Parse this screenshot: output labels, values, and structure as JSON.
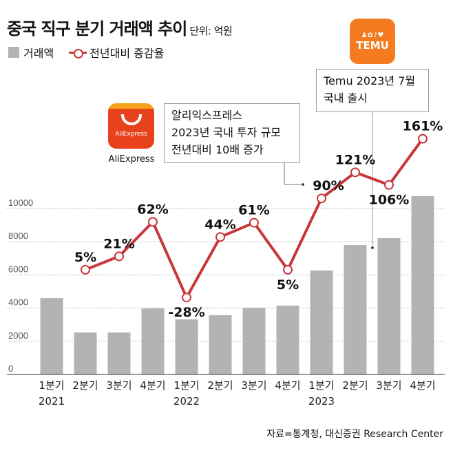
{
  "header": {
    "title": "중국 직구 분기 거래액 추이",
    "unit": "단위: 억원"
  },
  "legend": {
    "bar": "거래액",
    "line": "전년대비 증감율"
  },
  "logos": {
    "temu": "TEMU",
    "aliexpress": "AliExpress",
    "aliexpress_caption": "AliExpress"
  },
  "annotations": {
    "temu": [
      "Temu 2023년 7월",
      "국내 출시"
    ],
    "aliexpress": [
      "알리익스프레스",
      "2023년 국내 투자 규모",
      "전년대비 10배 증가"
    ]
  },
  "source": "자료=통계청, 대신증권  Research Center",
  "colors": {
    "bar": "#b3b3b3",
    "line": "#c8363a"
  },
  "chart_data": {
    "type": "bar+line",
    "categories": [
      "1분기",
      "2분기",
      "3분기",
      "4분기",
      "1분기",
      "2분기",
      "3분기",
      "4분기",
      "1분기",
      "2분기",
      "3분기",
      "4분기"
    ],
    "year_labels": [
      "2021",
      "",
      "",
      "",
      "2022",
      "",
      "",
      "",
      "2023",
      "",
      "",
      ""
    ],
    "ylim": [
      0,
      10000
    ],
    "yticks": [
      "0",
      "2000",
      "4000",
      "6000",
      "8000",
      "10000"
    ],
    "grid": true,
    "series": [
      {
        "name": "거래액",
        "type": "bar",
        "values": [
          4600,
          2530,
          2530,
          3980,
          3320,
          3570,
          4020,
          4150,
          6270,
          7800,
          8220,
          10750
        ]
      },
      {
        "name": "전년대비 증감율",
        "type": "line",
        "values": [
          null,
          5,
          21,
          62,
          -28,
          44,
          61,
          5,
          90,
          121,
          106,
          161
        ],
        "labels": [
          "",
          "5%",
          "21%",
          "62%",
          "-28%",
          "44%",
          "61%",
          "5%",
          "90%",
          "121%",
          "106%",
          "161%"
        ]
      }
    ],
    "legend_position": "top-left"
  }
}
